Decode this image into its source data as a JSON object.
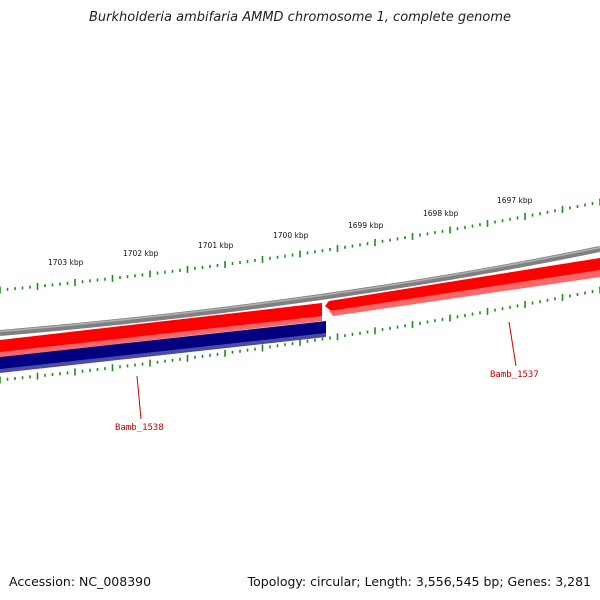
{
  "title": "Burkholderia ambifaria AMMD chromosome 1, complete genome",
  "accession": "Accession: NC_008390",
  "summary": "Topology: circular; Length: 3,556,545 bp; Genes: 3,281",
  "scale_labels": [
    "1703 kbp",
    "1702 kbp",
    "1701 kbp",
    "1700 kbp",
    "1699 kbp",
    "1698 kbp",
    "1697 kbp"
  ],
  "genes": [
    {
      "name": "Bamb_1538",
      "strand": "reverse",
      "color": "#000080"
    },
    {
      "name": "Bamb_1537",
      "strand": "forward",
      "color": "#ff0000"
    }
  ],
  "colors": {
    "backbone": "#808080",
    "forward_gene": "#ff0000",
    "reverse_gene": "#000080",
    "tick": "#228b22",
    "gene_label": "#cc0000"
  }
}
